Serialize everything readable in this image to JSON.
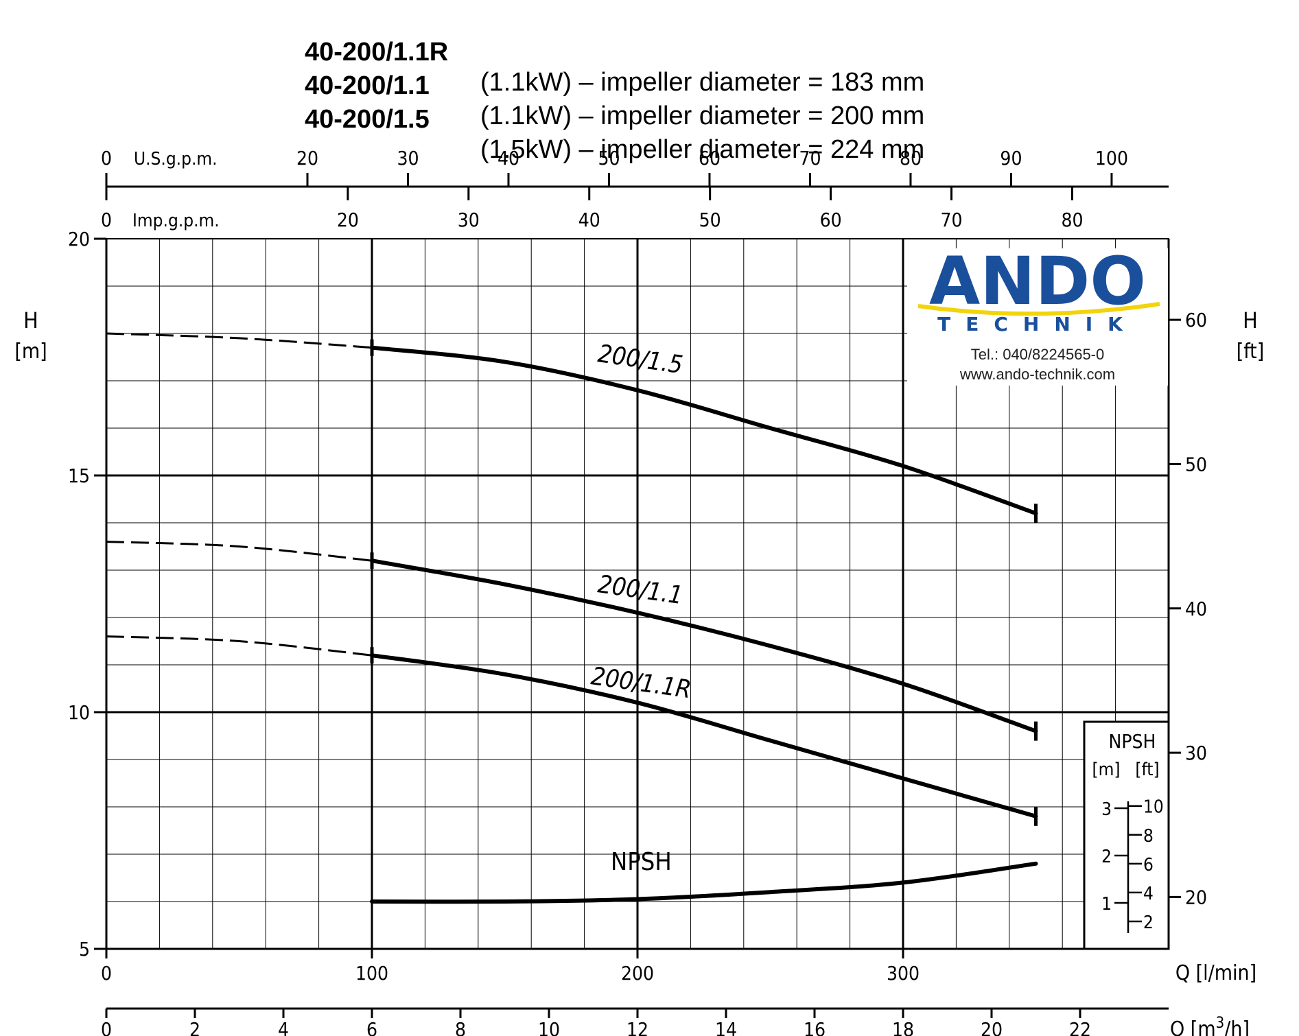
{
  "header": {
    "lines": [
      {
        "model": "40-200/1.1R",
        "desc": "(1.1kW) – impeller diameter = 183 mm"
      },
      {
        "model": "40-200/1.1",
        "desc": "(1.1kW) – impeller diameter = 200 mm"
      },
      {
        "model": "40-200/1.5",
        "desc": "(1.5kW) – impeller diameter = 224 mm"
      }
    ]
  },
  "logo": {
    "brand": "ANDO",
    "sub": "TECHNIK",
    "tel": "Tel.: 040/8224565-0",
    "web": "www.ando-technik.com",
    "brand_color": "#1a4f9c",
    "swoosh_color": "#f2d40a"
  },
  "chart_data": {
    "type": "line",
    "x_unit": "Q [l/min]",
    "xlim": [
      0,
      400
    ],
    "ylim": [
      5,
      20
    ],
    "grid": true,
    "axes": {
      "left": {
        "label": "H",
        "unit": "[m]",
        "ticks": [
          5,
          10,
          15,
          20
        ]
      },
      "right": {
        "label": "H",
        "unit": "[ft]",
        "ticks": [
          20,
          30,
          40,
          50,
          60
        ]
      },
      "bottom": {
        "label": "Q [l/min]",
        "ticks": [
          0,
          100,
          200,
          300
        ]
      },
      "bottom2": {
        "label_parts": [
          "Q [m",
          "3",
          "/h]"
        ],
        "ticks": [
          0,
          2,
          4,
          6,
          8,
          10,
          12,
          14,
          16,
          18,
          20,
          22
        ]
      },
      "top_usgpm": {
        "label": "U.S.g.p.m.",
        "ticks": [
          0,
          20,
          30,
          40,
          50,
          60,
          70,
          80,
          90,
          100
        ]
      },
      "top_impgpm": {
        "label": "Imp.g.p.m.",
        "ticks": [
          0,
          20,
          30,
          40,
          50,
          60,
          70,
          80
        ]
      }
    },
    "series": [
      {
        "name": "200/1.5",
        "dashed": [
          [
            0,
            18.0
          ],
          [
            50,
            17.9
          ],
          [
            100,
            17.7
          ]
        ],
        "solid": [
          [
            100,
            17.7
          ],
          [
            150,
            17.4
          ],
          [
            200,
            16.8
          ],
          [
            250,
            16.0
          ],
          [
            300,
            15.2
          ],
          [
            350,
            14.2
          ]
        ]
      },
      {
        "name": "200/1.1",
        "dashed": [
          [
            0,
            13.6
          ],
          [
            50,
            13.5
          ],
          [
            100,
            13.2
          ]
        ],
        "solid": [
          [
            100,
            13.2
          ],
          [
            150,
            12.7
          ],
          [
            200,
            12.1
          ],
          [
            250,
            11.4
          ],
          [
            300,
            10.6
          ],
          [
            350,
            9.6
          ]
        ]
      },
      {
        "name": "200/1.1R",
        "dashed": [
          [
            0,
            11.6
          ],
          [
            50,
            11.5
          ],
          [
            100,
            11.2
          ]
        ],
        "solid": [
          [
            100,
            11.2
          ],
          [
            150,
            10.8
          ],
          [
            200,
            10.2
          ],
          [
            250,
            9.4
          ],
          [
            300,
            8.6
          ],
          [
            350,
            7.8
          ]
        ]
      },
      {
        "name": "NPSH",
        "solid": [
          [
            100,
            6.0
          ],
          [
            150,
            6.0
          ],
          [
            200,
            6.05
          ],
          [
            250,
            6.2
          ],
          [
            300,
            6.4
          ],
          [
            350,
            6.8
          ]
        ]
      }
    ],
    "npsh_scale": {
      "title": "NPSH",
      "units": [
        "[m]",
        "[ft]"
      ],
      "m_ticks": [
        1,
        2,
        3
      ],
      "ft_ticks": [
        2,
        4,
        6,
        8,
        10
      ]
    }
  }
}
